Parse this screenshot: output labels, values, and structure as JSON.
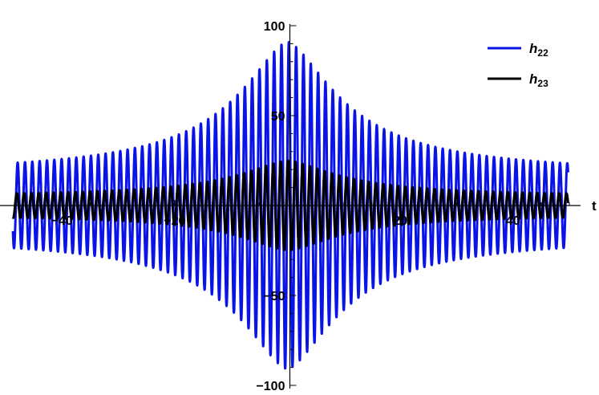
{
  "chart_data": {
    "type": "line",
    "xlabel": "t",
    "ylabel": "",
    "xlim": [
      -49,
      50
    ],
    "ylim": [
      -100,
      100
    ],
    "x_ticks": [
      -40,
      -20,
      20,
      40
    ],
    "y_ticks": [
      100,
      50,
      -50,
      -100
    ],
    "grid": false,
    "legend_position": "top-right",
    "series": [
      {
        "name": "h",
        "subscript": "22",
        "color": "#0a14e6",
        "envelope": {
          "peak_amplitude": 91,
          "far_amplitude": 17,
          "peak_t": 0
        },
        "oscillation_period": 1.3
      },
      {
        "name": "h",
        "subscript": "23",
        "color": "#000000",
        "envelope": {
          "peak_amplitude": 25,
          "far_amplitude": 5,
          "peak_t": 0
        },
        "oscillation_period": 1.3
      }
    ]
  }
}
